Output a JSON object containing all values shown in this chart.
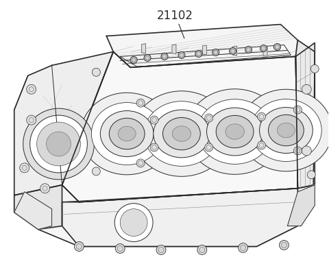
{
  "label": "21102",
  "bg_color": "#ffffff",
  "line_color": "#2a2a2a",
  "fig_width": 4.8,
  "fig_height": 4.04,
  "dpi": 100,
  "lw_main": 1.2,
  "lw_med": 0.7,
  "lw_thin": 0.4,
  "gray_fill": "#e8e8e8",
  "white_fill": "#ffffff",
  "mid_fill": "#f2f2f2"
}
